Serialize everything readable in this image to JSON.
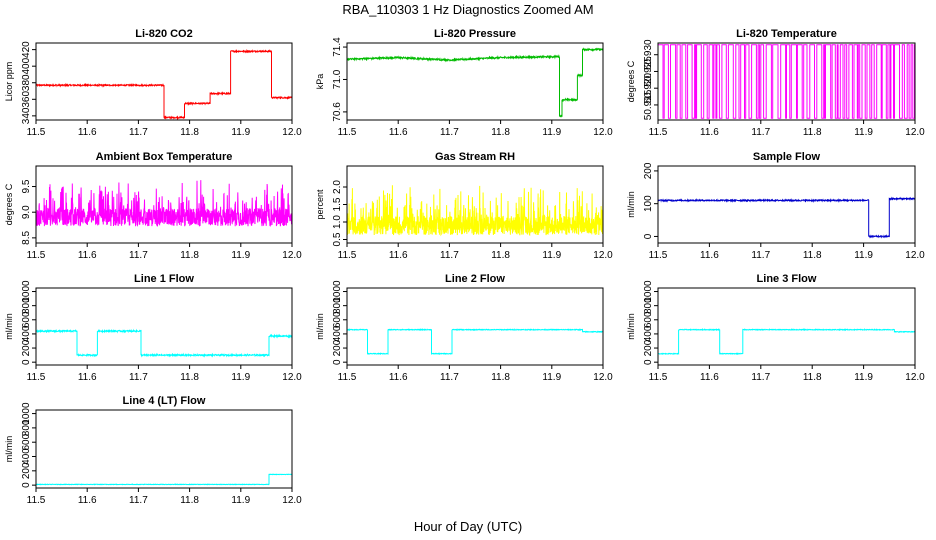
{
  "figure": {
    "title": "RBA_110303  1 Hz Diagnostics Zoomed AM",
    "xlabel": "Hour of Day (UTC)"
  },
  "chart_data": [
    {
      "type": "line",
      "title": "Li-820 CO2",
      "ylabel": "Licor ppm",
      "color": "#ff0000",
      "xlim": [
        11.5,
        12.0
      ],
      "ylim": [
        335,
        428
      ],
      "yticks": [
        340,
        360,
        380,
        400,
        420
      ],
      "xticks": [
        11.5,
        11.6,
        11.7,
        11.8,
        11.9,
        12.0
      ],
      "noise": 0.8,
      "steps": [
        [
          11.5,
          377
        ],
        [
          11.75,
          377
        ],
        [
          11.75,
          338
        ],
        [
          11.79,
          338
        ],
        [
          11.79,
          355
        ],
        [
          11.84,
          355
        ],
        [
          11.84,
          367
        ],
        [
          11.88,
          367
        ],
        [
          11.88,
          418
        ],
        [
          11.96,
          418
        ],
        [
          11.96,
          362
        ],
        [
          12.0,
          362
        ]
      ]
    },
    {
      "type": "line",
      "title": "Li-820 Pressure",
      "ylabel": "kPa",
      "color": "#00bb00",
      "xlim": [
        11.5,
        12.0
      ],
      "ylim": [
        70.5,
        71.45
      ],
      "yticks": [
        70.6,
        71.0,
        71.4
      ],
      "xticks": [
        11.5,
        11.6,
        11.7,
        11.8,
        11.9,
        12.0
      ],
      "noise": 0.01,
      "steps": [
        [
          11.5,
          71.25
        ],
        [
          11.6,
          71.27
        ],
        [
          11.7,
          71.24
        ],
        [
          11.8,
          71.27
        ],
        [
          11.9,
          71.28
        ],
        [
          11.915,
          71.28
        ],
        [
          11.915,
          70.55
        ],
        [
          11.92,
          70.55
        ],
        [
          11.92,
          70.75
        ],
        [
          11.95,
          70.75
        ],
        [
          11.95,
          71.05
        ],
        [
          11.96,
          71.05
        ],
        [
          11.96,
          71.37
        ],
        [
          12.0,
          71.37
        ]
      ]
    },
    {
      "type": "line",
      "title": "Li-820 Temperature",
      "ylabel": "degrees C",
      "color": "#ff00ff",
      "xlim": [
        11.5,
        12.0
      ],
      "ylim": [
        50.9105,
        50.9335
      ],
      "yticks": [
        50.915,
        50.92,
        50.925,
        50.93
      ],
      "xticks": [
        11.5,
        11.6,
        11.7,
        11.8,
        11.9,
        12.0
      ],
      "pattern": "binary",
      "levels": [
        50.911,
        50.933
      ]
    },
    {
      "type": "line",
      "title": "Ambient Box Temperature",
      "ylabel": "degrees C",
      "color": "#ff00ff",
      "xlim": [
        11.5,
        12.0
      ],
      "ylim": [
        8.4,
        9.9
      ],
      "yticks": [
        8.5,
        9.0,
        9.5
      ],
      "xticks": [
        11.5,
        11.6,
        11.7,
        11.8,
        11.9,
        12.0
      ],
      "pattern": "noise",
      "base": 8.9,
      "spread": 0.35
    },
    {
      "type": "line",
      "title": "Gas Stream RH",
      "ylabel": "percent",
      "color": "#ffff00",
      "xlim": [
        11.5,
        12.0
      ],
      "ylim": [
        0.4,
        2.6
      ],
      "yticks": [
        0.5,
        1.0,
        1.5,
        2.0
      ],
      "xticks": [
        11.5,
        11.6,
        11.7,
        11.8,
        11.9,
        12.0
      ],
      "pattern": "noise",
      "base": 0.9,
      "spread": 0.55
    },
    {
      "type": "line",
      "title": "Sample Flow",
      "ylabel": "ml/min",
      "color": "#0000cc",
      "xlim": [
        11.5,
        12.0
      ],
      "ylim": [
        -20,
        215
      ],
      "yticks": [
        0,
        100,
        200
      ],
      "xticks": [
        11.5,
        11.6,
        11.7,
        11.8,
        11.9,
        12.0
      ],
      "noise": 2,
      "steps": [
        [
          11.5,
          110
        ],
        [
          11.91,
          110
        ],
        [
          11.91,
          0
        ],
        [
          11.95,
          0
        ],
        [
          11.95,
          115
        ],
        [
          12.0,
          115
        ]
      ]
    },
    {
      "type": "line",
      "title": "Line 1 Flow",
      "ylabel": "ml/min",
      "color": "#00ffff",
      "xlim": [
        11.5,
        12.0
      ],
      "ylim": [
        -40,
        1050
      ],
      "yticks": [
        0,
        200,
        400,
        600,
        800,
        1000
      ],
      "xticks": [
        11.5,
        11.6,
        11.7,
        11.8,
        11.9,
        12.0
      ],
      "noise": 10,
      "steps": [
        [
          11.5,
          440
        ],
        [
          11.58,
          440
        ],
        [
          11.58,
          100
        ],
        [
          11.62,
          100
        ],
        [
          11.62,
          440
        ],
        [
          11.705,
          440
        ],
        [
          11.705,
          100
        ],
        [
          11.955,
          100
        ],
        [
          11.955,
          370
        ],
        [
          12.0,
          370
        ]
      ]
    },
    {
      "type": "line",
      "title": "Line 2 Flow",
      "ylabel": "ml/min",
      "color": "#00ffff",
      "xlim": [
        11.5,
        12.0
      ],
      "ylim": [
        -40,
        1050
      ],
      "yticks": [
        0,
        200,
        400,
        600,
        800,
        1000
      ],
      "xticks": [
        11.5,
        11.6,
        11.7,
        11.8,
        11.9,
        12.0
      ],
      "noise": 5,
      "steps": [
        [
          11.5,
          460
        ],
        [
          11.54,
          460
        ],
        [
          11.54,
          120
        ],
        [
          11.58,
          120
        ],
        [
          11.58,
          460
        ],
        [
          11.665,
          460
        ],
        [
          11.665,
          120
        ],
        [
          11.705,
          120
        ],
        [
          11.705,
          460
        ],
        [
          11.96,
          460
        ],
        [
          11.96,
          430
        ],
        [
          12.0,
          430
        ]
      ]
    },
    {
      "type": "line",
      "title": "Line 3 Flow",
      "ylabel": "ml/min",
      "color": "#00ffff",
      "xlim": [
        11.5,
        12.0
      ],
      "ylim": [
        -40,
        1050
      ],
      "yticks": [
        0,
        200,
        400,
        600,
        800,
        1000
      ],
      "xticks": [
        11.5,
        11.6,
        11.7,
        11.8,
        11.9,
        12.0
      ],
      "noise": 5,
      "steps": [
        [
          11.5,
          120
        ],
        [
          11.54,
          120
        ],
        [
          11.54,
          460
        ],
        [
          11.62,
          460
        ],
        [
          11.62,
          120
        ],
        [
          11.665,
          120
        ],
        [
          11.665,
          460
        ],
        [
          11.96,
          460
        ],
        [
          11.96,
          430
        ],
        [
          12.0,
          430
        ]
      ]
    },
    {
      "type": "line",
      "title": "Line 4 (LT) Flow",
      "ylabel": "ml/min",
      "color": "#00ffff",
      "xlim": [
        11.5,
        12.0
      ],
      "ylim": [
        -40,
        1050
      ],
      "yticks": [
        0,
        200,
        400,
        600,
        800,
        1000
      ],
      "xticks": [
        11.5,
        11.6,
        11.7,
        11.8,
        11.9,
        12.0
      ],
      "noise": 3,
      "steps": [
        [
          11.5,
          10
        ],
        [
          11.955,
          10
        ],
        [
          11.955,
          150
        ],
        [
          12.0,
          150
        ]
      ]
    }
  ]
}
